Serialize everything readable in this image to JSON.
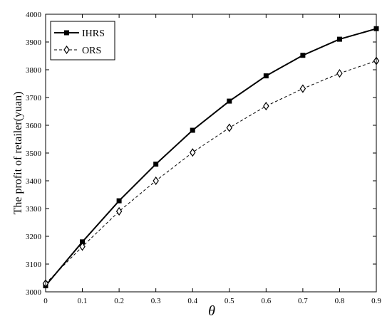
{
  "chart_data": {
    "type": "line",
    "xlabel": "θ",
    "ylabel": "The profit of retailer(yuan)",
    "x": [
      0,
      0.1,
      0.2,
      0.3,
      0.4,
      0.5,
      0.6,
      0.7,
      0.8,
      0.9
    ],
    "xlim": [
      0,
      0.9
    ],
    "ylim": [
      3000,
      4000
    ],
    "xticks": [
      "0",
      "0.1",
      "0.2",
      "0.3",
      "0.4",
      "0.5",
      "0.6",
      "0.7",
      "0.8",
      "0.9"
    ],
    "yticks": [
      "3000",
      "3100",
      "3200",
      "3300",
      "3400",
      "3500",
      "3600",
      "3700",
      "3800",
      "3900",
      "4000"
    ],
    "grid": false,
    "legend_position": "top-left",
    "series": [
      {
        "name": "IHRS",
        "marker": "square",
        "line_style": "solid",
        "color": "#000000",
        "values": [
          3022,
          3180,
          3328,
          3460,
          3582,
          3687,
          3778,
          3852,
          3910,
          3948
        ]
      },
      {
        "name": "ORS",
        "marker": "diamond",
        "line_style": "dashed",
        "color": "#000000",
        "values": [
          3030,
          3163,
          3290,
          3400,
          3502,
          3591,
          3669,
          3732,
          3787,
          3832
        ]
      }
    ]
  }
}
